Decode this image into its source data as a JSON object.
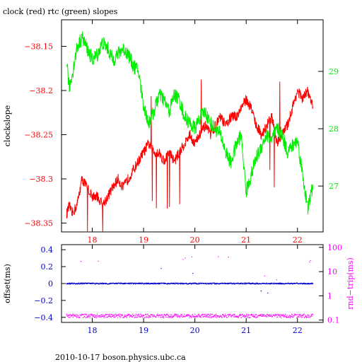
{
  "page": {
    "title": "clock (red) rtc (green) slopes",
    "footer": "2010-10-17 boson.physics.ubc.ca"
  },
  "colors": {
    "clock": "#ff0000",
    "rtc": "#00ee00",
    "offset": "#0000cc",
    "rndtrip": "#ff00ff",
    "axis": "#000000"
  },
  "chart_data": [
    {
      "type": "line",
      "title": "clock (red) rtc (green) slopes",
      "xlabel": "",
      "xlim": [
        17.4,
        22.5
      ],
      "xticks": [
        18,
        19,
        20,
        21,
        22
      ],
      "ylabel_left": "clockslope",
      "ylim_left": [
        -38.36,
        -38.12
      ],
      "yticks_left": [
        -38.15,
        -38.2,
        -38.25,
        -38.3,
        -38.35
      ],
      "ylim_right": [
        26.2,
        29.9
      ],
      "yticks_right": [
        27,
        28,
        29
      ],
      "grid": false,
      "series": [
        {
          "name": "clock",
          "color": "#ff0000",
          "axis": "left",
          "x": [
            17.5,
            17.55,
            17.6,
            17.7,
            17.8,
            17.9,
            18.0,
            18.1,
            18.2,
            18.3,
            18.4,
            18.5,
            18.6,
            18.7,
            18.8,
            18.9,
            19.0,
            19.1,
            19.2,
            19.3,
            19.4,
            19.5,
            19.6,
            19.7,
            19.8,
            19.9,
            20.0,
            20.1,
            20.2,
            20.3,
            20.4,
            20.5,
            20.6,
            20.7,
            20.8,
            20.9,
            21.0,
            21.1,
            21.2,
            21.3,
            21.4,
            21.5,
            21.6,
            21.7,
            21.8,
            21.9,
            22.0,
            22.1,
            22.2,
            22.3
          ],
          "y": [
            -38.34,
            -38.33,
            -38.34,
            -38.33,
            -38.3,
            -38.31,
            -38.32,
            -38.32,
            -38.33,
            -38.32,
            -38.31,
            -38.3,
            -38.31,
            -38.3,
            -38.29,
            -38.28,
            -38.27,
            -38.26,
            -38.27,
            -38.27,
            -38.28,
            -38.27,
            -38.28,
            -38.27,
            -38.26,
            -38.25,
            -38.26,
            -38.25,
            -38.24,
            -38.25,
            -38.24,
            -38.23,
            -38.24,
            -38.23,
            -38.23,
            -38.22,
            -38.21,
            -38.22,
            -38.24,
            -38.25,
            -38.24,
            -38.23,
            -38.26,
            -38.25,
            -38.24,
            -38.22,
            -38.2,
            -38.21,
            -38.2,
            -38.22
          ]
        },
        {
          "name": "rtc",
          "color": "#00ee00",
          "axis": "right",
          "x": [
            17.5,
            17.55,
            17.6,
            17.7,
            17.8,
            17.9,
            18.0,
            18.1,
            18.2,
            18.3,
            18.4,
            18.5,
            18.6,
            18.7,
            18.8,
            18.9,
            19.0,
            19.1,
            19.2,
            19.3,
            19.4,
            19.5,
            19.6,
            19.7,
            19.8,
            19.9,
            20.0,
            20.1,
            20.2,
            20.3,
            20.4,
            20.5,
            20.6,
            20.7,
            20.8,
            20.9,
            21.0,
            21.1,
            21.2,
            21.3,
            21.4,
            21.5,
            21.6,
            21.7,
            21.8,
            21.9,
            22.0,
            22.1,
            22.2,
            22.3
          ],
          "y": [
            29.2,
            28.7,
            28.9,
            29.4,
            29.6,
            29.4,
            29.2,
            29.3,
            29.5,
            29.4,
            29.2,
            29.3,
            29.4,
            29.3,
            29.1,
            29.0,
            28.4,
            28.1,
            28.3,
            28.6,
            28.5,
            28.3,
            28.6,
            28.5,
            28.2,
            28.1,
            28.0,
            28.2,
            28.3,
            28.1,
            28.0,
            27.9,
            27.6,
            27.4,
            27.7,
            27.9,
            26.9,
            27.2,
            27.5,
            27.7,
            27.9,
            27.8,
            28.0,
            27.9,
            27.6,
            27.7,
            27.8,
            27.2,
            26.6,
            27.0
          ]
        }
      ]
    },
    {
      "type": "scatter",
      "xlabel": "",
      "xlim": [
        17.4,
        22.5
      ],
      "xticks": [
        18,
        19,
        20,
        21,
        22
      ],
      "ylabel_left": "offset(ms)",
      "ylim_left": [
        -0.46,
        0.46
      ],
      "yticks_left": [
        0.4,
        0.2,
        0,
        -0.2,
        -0.4
      ],
      "ylabel_right": "rnd−trip(ms)",
      "yscale_right": "log",
      "ylim_right": [
        0.08,
        130
      ],
      "yticks_right": [
        100,
        10,
        1,
        0.1
      ],
      "grid": false,
      "series": [
        {
          "name": "offset",
          "color": "#0000cc",
          "axis": "left",
          "x": [
            17.5,
            18.0,
            18.5,
            19.0,
            19.5,
            20.0,
            20.5,
            21.0,
            21.5,
            22.0,
            22.3
          ],
          "y": [
            0.0,
            0.0,
            0.0,
            0.0,
            0.0,
            0.0,
            0.0,
            0.0,
            0.0,
            0.0,
            0.0
          ]
        },
        {
          "name": "rnd-trip",
          "color": "#ff00ff",
          "axis": "right",
          "x": [
            17.5,
            18.0,
            18.5,
            19.0,
            19.5,
            20.0,
            20.5,
            21.0,
            21.5,
            22.0,
            22.3
          ],
          "y": [
            0.15,
            0.15,
            0.15,
            0.15,
            0.15,
            0.15,
            0.15,
            0.15,
            0.15,
            0.15,
            0.15
          ]
        }
      ]
    }
  ]
}
